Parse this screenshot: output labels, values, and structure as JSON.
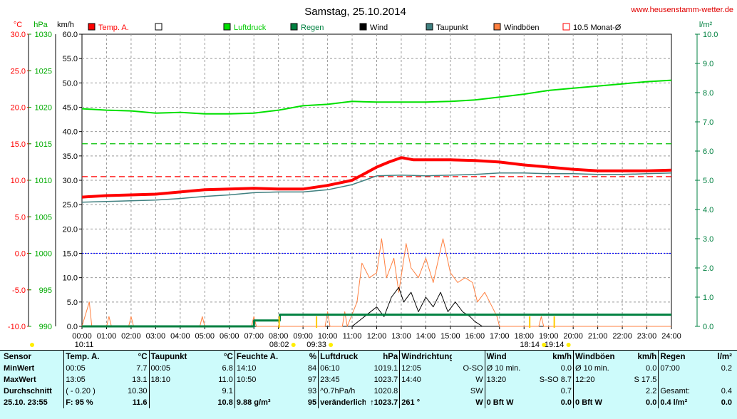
{
  "title": "Samstag, 25.10.2014",
  "site": "www.heusenstamm-wetter.de",
  "units": {
    "temp": "°C",
    "press": "hPa",
    "wind": "km/h",
    "rain": "l/m²"
  },
  "legend": [
    {
      "label": "Temp. A.",
      "color": "#ff0000",
      "text_color": "#ff0000"
    },
    {
      "label": "",
      "color": "#ffffff",
      "text_color": "#000000"
    },
    {
      "label": "Luftdruck",
      "color": "#00e000",
      "text_color": "#00cc00"
    },
    {
      "label": "Regen",
      "color": "#008040",
      "text_color": "#008040"
    },
    {
      "label": "Wind",
      "color": "#000000",
      "text_color": "#000000"
    },
    {
      "label": "Taupunkt",
      "color": "#408080",
      "text_color": "#000000"
    },
    {
      "label": "Windböen",
      "color": "#ff8040",
      "text_color": "#000000"
    },
    {
      "label": "10.5 Monat-Ø",
      "color": "#ff0000",
      "text_color": "#000000",
      "outline": true
    }
  ],
  "colors": {
    "temp": "#ff0000",
    "press": "#00e000",
    "rain": "#008040",
    "wind": "#000000",
    "dew": "#408080",
    "gust": "#ff8040",
    "mean": "#0000ff"
  },
  "chart_data": {
    "type": "line",
    "axes": {
      "temp": {
        "unit": "°C",
        "min": -10,
        "max": 30,
        "ticks": [
          "-10.0",
          "-5.0",
          "0.0",
          "5.0",
          "10.0",
          "15.0",
          "20.0",
          "25.0",
          "30.0"
        ]
      },
      "press": {
        "unit": "hPa",
        "min": 990,
        "max": 1030,
        "ticks": [
          "990",
          "995",
          "1000",
          "1005",
          "1010",
          "1015",
          "1020",
          "1025",
          "1030"
        ]
      },
      "wind": {
        "unit": "km/h",
        "min": 0,
        "max": 60,
        "ticks": [
          "0.0",
          "5.0",
          "10.0",
          "15.0",
          "20.0",
          "25.0",
          "30.0",
          "35.0",
          "40.0",
          "45.0",
          "50.0",
          "55.0",
          "60.0"
        ]
      },
      "rain": {
        "unit": "l/m²",
        "min": 0,
        "max": 10,
        "ticks": [
          "0.0",
          "1.0",
          "2.0",
          "3.0",
          "4.0",
          "5.0",
          "6.0",
          "7.0",
          "8.0",
          "9.0",
          "10.0"
        ]
      },
      "x": {
        "ticks": [
          "00:00",
          "01:00",
          "02:00",
          "03:00",
          "04:00",
          "05:00",
          "06:00",
          "07:00",
          "08:00",
          "09:00",
          "10:00",
          "11:00",
          "12:00",
          "13:00",
          "14:00",
          "15:00",
          "16:00",
          "17:00",
          "18:00",
          "19:00",
          "20:00",
          "21:00",
          "22:00",
          "23:00",
          "24:00"
        ]
      }
    },
    "grid": true,
    "series": [
      {
        "name": "Temp. A.",
        "axis": "temp",
        "x": [
          0,
          1,
          2,
          3,
          4,
          5,
          6,
          7,
          8,
          9,
          10,
          11,
          11.5,
          12,
          12.5,
          13,
          13.5,
          14,
          15,
          16,
          17,
          18,
          19,
          20,
          21,
          22,
          23,
          24
        ],
        "values": [
          7.7,
          7.9,
          8.0,
          8.1,
          8.4,
          8.7,
          8.8,
          8.9,
          8.8,
          8.8,
          9.3,
          10.0,
          10.9,
          11.8,
          12.5,
          13.1,
          12.8,
          12.8,
          12.8,
          12.7,
          12.5,
          12.1,
          11.8,
          11.5,
          11.3,
          11.3,
          11.3,
          11.4
        ]
      },
      {
        "name": "Taupunkt",
        "axis": "temp",
        "x": [
          0,
          1,
          2,
          3,
          4,
          5,
          6,
          7,
          8,
          9,
          10,
          11,
          11.5,
          12,
          13,
          14,
          15,
          16,
          17,
          18,
          19,
          20,
          21,
          22,
          23,
          24
        ],
        "values": [
          7.0,
          7.1,
          7.2,
          7.3,
          7.5,
          7.8,
          8.0,
          8.3,
          8.4,
          8.4,
          8.7,
          9.4,
          10.0,
          10.6,
          10.7,
          10.6,
          10.7,
          10.8,
          11.0,
          11.0,
          10.9,
          10.9,
          10.8,
          10.8,
          10.9,
          11.0
        ]
      },
      {
        "name": "Luftdruck",
        "axis": "press",
        "x": [
          0,
          1,
          2,
          3,
          4,
          5,
          6,
          7,
          8,
          9,
          10,
          11,
          12,
          13,
          14,
          15,
          16,
          17,
          18,
          19,
          20,
          21,
          22,
          23,
          24
        ],
        "values": [
          1019.8,
          1019.6,
          1019.5,
          1019.2,
          1019.3,
          1019.1,
          1019.1,
          1019.2,
          1019.6,
          1020.2,
          1020.4,
          1020.8,
          1020.7,
          1020.7,
          1020.7,
          1020.8,
          1021.0,
          1021.4,
          1021.8,
          1022.3,
          1022.6,
          1022.9,
          1023.2,
          1023.5,
          1023.7
        ]
      },
      {
        "name": "Regen",
        "axis": "rain",
        "x": [
          0,
          7,
          7.01,
          8.05,
          8.06,
          24
        ],
        "values": [
          0,
          0,
          0.2,
          0.2,
          0.4,
          0.4
        ]
      },
      {
        "name": "Wind",
        "axis": "wind",
        "x": [
          11,
          11.5,
          12,
          12.3,
          12.6,
          12.9,
          13.1,
          13.4,
          13.7,
          14,
          14.3,
          14.6,
          14.9,
          15.2,
          15.5,
          15.8,
          16,
          16.3
        ],
        "values": [
          0,
          2,
          4,
          2,
          6,
          8,
          5,
          7,
          3,
          6,
          4,
          7,
          3,
          5,
          3,
          2,
          1,
          0
        ]
      },
      {
        "name": "Windböen",
        "axis": "wind",
        "x": [
          0,
          0.3,
          0.4,
          0.5,
          1,
          1.1,
          1.2,
          1.9,
          2,
          2.1,
          4.8,
          4.9,
          5,
          6.9,
          7,
          7.1,
          9.9,
          10,
          10.1,
          10.6,
          10.7,
          10.8,
          11.2,
          11.4,
          11.7,
          12,
          12.2,
          12.4,
          12.7,
          12.9,
          13.2,
          13.4,
          13.7,
          14,
          14.3,
          14.7,
          15,
          15.3,
          15.6,
          15.9,
          16.1,
          16.4,
          16.7,
          16.9,
          17,
          18.6,
          18.7,
          18.8,
          24
        ],
        "values": [
          0,
          5,
          0,
          0,
          0,
          2,
          0,
          0,
          2,
          0,
          0,
          2,
          0,
          0,
          2,
          0,
          0,
          3,
          0,
          0,
          3,
          0,
          5,
          13,
          10,
          11,
          18,
          10,
          14,
          7,
          17,
          12,
          10,
          14,
          9,
          18,
          11,
          9,
          10,
          9,
          5,
          7,
          4,
          2,
          0,
          0,
          2,
          0,
          0
        ]
      }
    ],
    "reference_lines": [
      {
        "label": "10.5 Monat-Ø",
        "axis": "temp",
        "value": 10.5,
        "color": "#ff0000"
      },
      {
        "axis": "temp",
        "value": 15.0,
        "color": "#00c000"
      },
      {
        "axis": "temp",
        "value": 0.0,
        "color": "#0000ff"
      }
    ],
    "events": [
      {
        "label": "10:11",
        "x": -0.3
      },
      {
        "label": "08:02",
        "x": 8.03
      },
      {
        "label": "09:33",
        "x": 9.55
      },
      {
        "label": "18:14",
        "x": 18.23
      },
      {
        "label": "19:14",
        "x": 19.23
      }
    ]
  },
  "stats": {
    "headers": [
      "Sensor",
      "Temp. A.",
      "°C",
      "Taupunkt",
      "°C",
      "Feuchte A.",
      "%",
      "Luftdruck",
      "hPa",
      "Windrichtung",
      "",
      "Wind",
      "km/h",
      "Windböen",
      "km/h",
      "Regen",
      "l/m²"
    ],
    "rows": [
      [
        "MinWert",
        "00:05",
        "7.7",
        "00:05",
        "6.8",
        "14:10",
        "84",
        "06:10",
        "1019.1",
        "12:05",
        "O-SO",
        "Ø 10 min.",
        "0.0",
        "Ø 10 min.",
        "0.0",
        "07:00",
        "0.2"
      ],
      [
        "MaxWert",
        "13:05",
        "13.1",
        "18:10",
        "11.0",
        "10:50",
        "97",
        "23:45",
        "1023.7",
        "14:40",
        "W",
        "13:20",
        "S-SO 8.7",
        "12:20",
        "S 17.5",
        "",
        ""
      ],
      [
        "Durchschnitt",
        "( - 0.20 )",
        "10.30",
        "",
        "9.1",
        "",
        "93",
        "^0.7hPa/h",
        "1020.8",
        "",
        "SW",
        "",
        "0.7",
        "",
        "2.2",
        "Gesamt:",
        "0.4"
      ],
      [
        "25.10. 23:55",
        "F: 95 %",
        "11.6",
        "",
        "10.8",
        "9.88 g/m³",
        "95",
        "veränderlich",
        "↑1023.7",
        "261 °",
        "W",
        "0 Bft W",
        "0.0",
        "0 Bft W",
        "0.0",
        "0.4 l/m²",
        "0.0"
      ]
    ]
  }
}
